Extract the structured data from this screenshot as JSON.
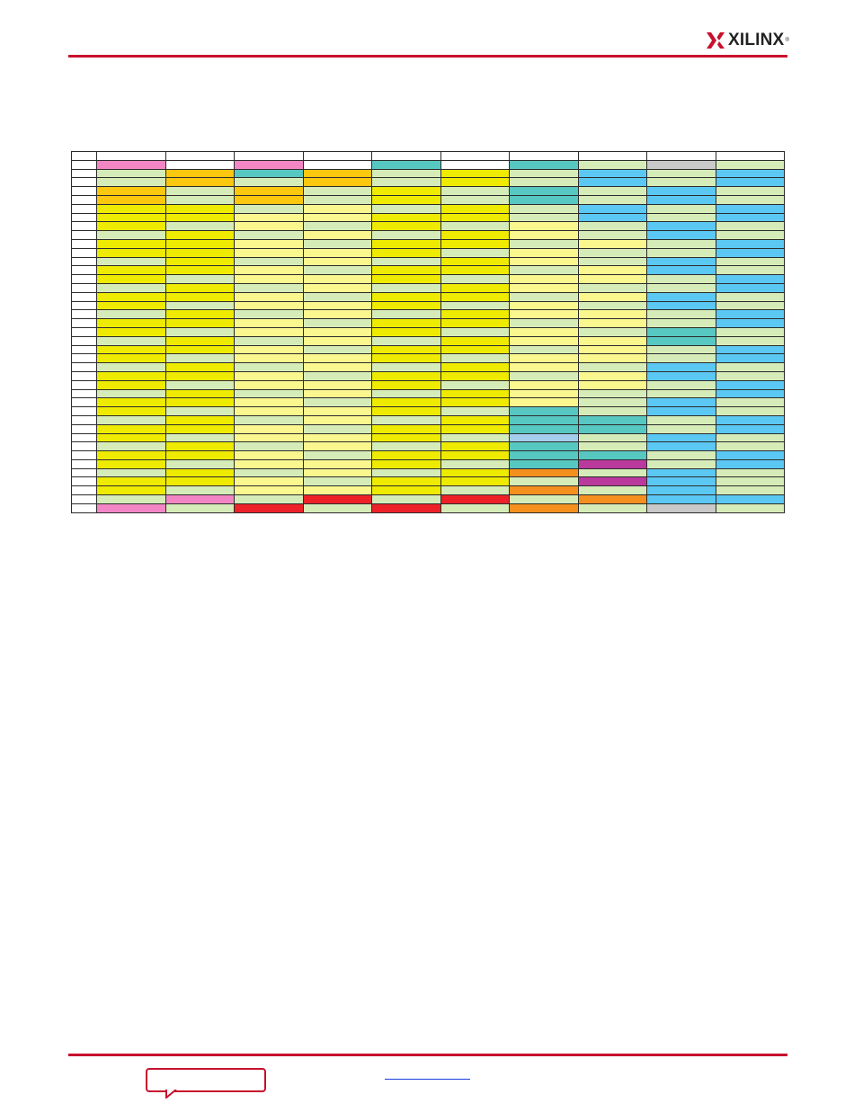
{
  "header": {
    "logo_text": "XILINX",
    "logo_reg": "®",
    "brand_color": "#c8102e"
  },
  "colors": {
    "W": "#ffffff",
    "G": "#d6ecb8",
    "Y": "#eeea00",
    "L": "#faf78f",
    "B": "#5bc8f3",
    "T": "#57c7c1",
    "O": "#fbc70f",
    "P": "#f286c5",
    "R": "#ec2228",
    "A": "#f5901e",
    "M": "#b93a9c",
    "S": "#c9c9c9",
    "K": "#a6cdec"
  },
  "table": {
    "rows": [
      "WWWWWWWWWW",
      "PWPWTWTGSG",
      "GOTOGYGBGB",
      "GOGOGYGBGB",
      "OGOGYGTGBG",
      "OGOGYGTGBG",
      "YYGLGYGBGB",
      "YYLLYYGBGB",
      "YGLGYGLGBG",
      "GYGLGYLGBG",
      "YYLGYYGLGB",
      "YYLLYGLGGB",
      "GYGLGYLGBG",
      "YYLGYYGLBG",
      "YGLLYGLLGB",
      "GYGLGYLGGB",
      "YYLGYYGLBG",
      "YGLLYGLGBG",
      "GYGLGYLLGB",
      "YYLGYYGLGB",
      "YGLLYGLGTG",
      "GYGLGYLLTG",
      "YYLGYYGLGB",
      "YGLLYGLLGB",
      "GYGLGYLGBG",
      "YYLGYYGLBG",
      "YGLLYGLLGB",
      "GYGLGYLGGB",
      "YYLGYYLGBG",
      "YGLLYGTGBG",
      "GYGLGYTTGB",
      "YYLGYYTTGB",
      "YGLLYGKGBG",
      "GYGLGYTGBG",
      "YYLGYYTTGB",
      "YGLLYGTMGB",
      "GYGLGYAGBG",
      "YYLGYYGMBG",
      "YGLLYGAGBG",
      "GPGRGRGABB",
      "PGRGRGAGSG"
    ]
  }
}
